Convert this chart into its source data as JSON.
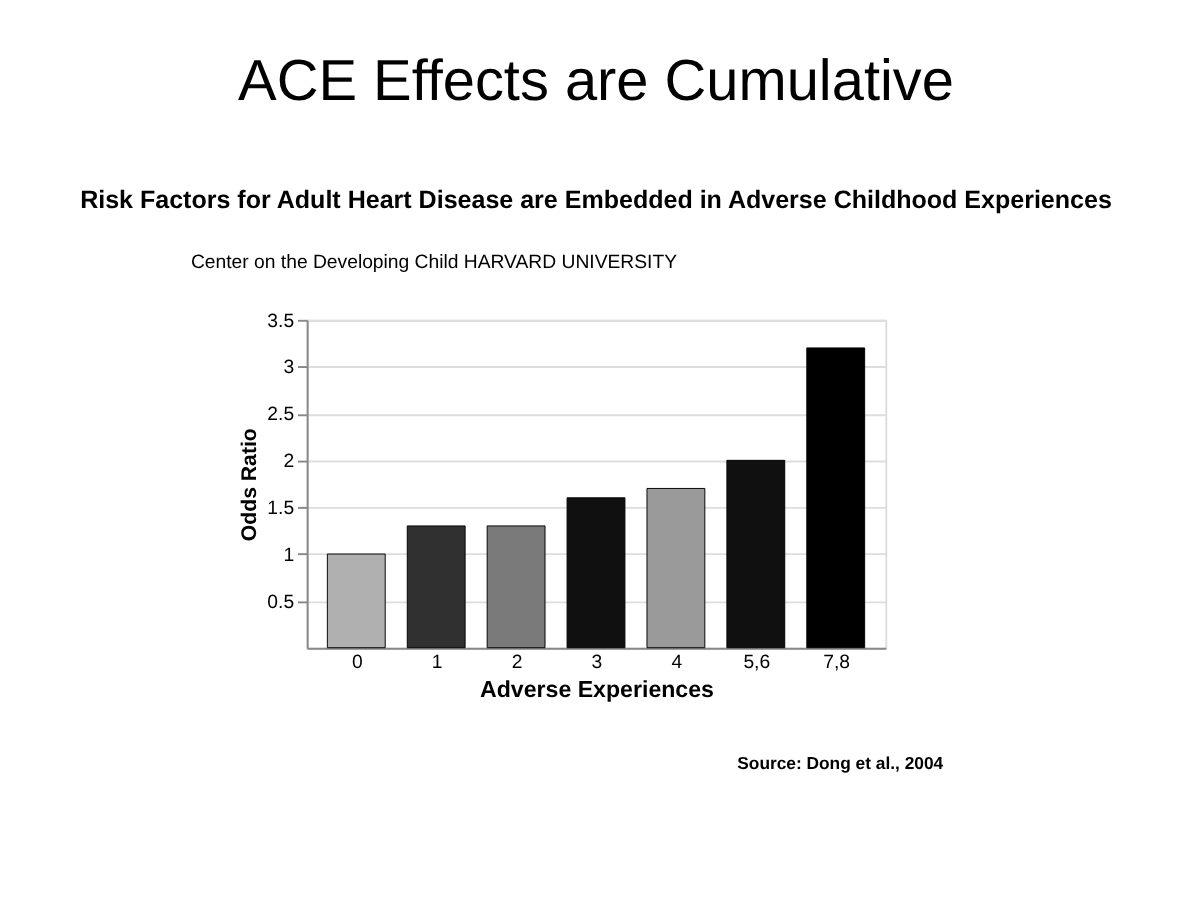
{
  "chart_data": {
    "type": "bar",
    "title": "ACE Effects are Cumulative",
    "subtitle": "Risk Factors for Adult Heart Disease are Embedded in Adverse Childhood Experiences",
    "xlabel": "Adverse Experiences",
    "ylabel": "Odds Ratio",
    "categories": [
      "0",
      "1",
      "2",
      "3",
      "4",
      "5,6",
      "7,8"
    ],
    "values": [
      1.0,
      1.3,
      1.3,
      1.6,
      1.7,
      2.0,
      3.2
    ],
    "colors": [
      "#b0b0b0",
      "#303030",
      "#7a7a7a",
      "#101010",
      "#9a9a9a",
      "#101010",
      "#000000"
    ],
    "ylim": [
      0,
      3.5
    ],
    "yticks": [
      0.5,
      1,
      1.5,
      2,
      2.5,
      3,
      3.5
    ],
    "grid": "y",
    "annotations": [
      "Center on the Developing Child HARVARD UNIVERSITY",
      "Source: Dong et al., 2004"
    ]
  }
}
